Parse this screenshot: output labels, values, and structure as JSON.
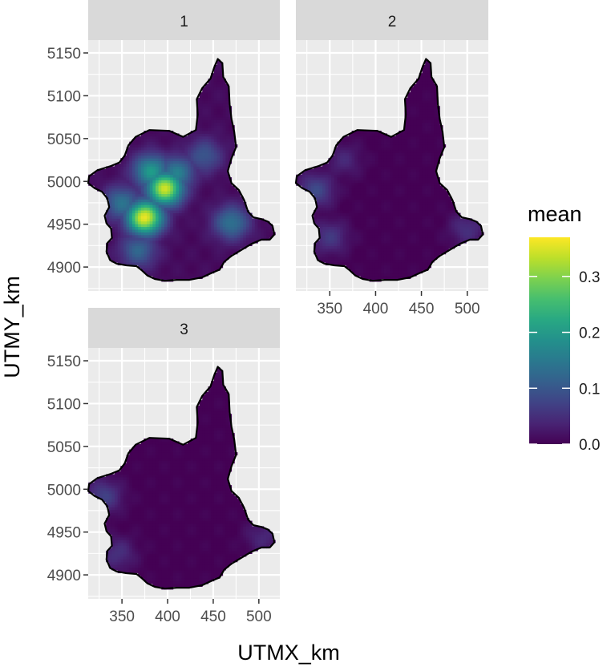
{
  "chart_data": {
    "type": "heatmap",
    "facet_strip_labels": [
      "1",
      "2",
      "3"
    ],
    "xlabel": "UTMX_km",
    "ylabel": "UTMY_km",
    "xlim": [
      313,
      523
    ],
    "ylim": [
      4872,
      5165
    ],
    "x_ticks": [
      350,
      400,
      450,
      500
    ],
    "y_ticks": [
      4900,
      4950,
      5000,
      5050,
      5100,
      5150
    ],
    "x_tick_labels": [
      "350",
      "400",
      "450",
      "500"
    ],
    "y_tick_labels": [
      "4900",
      "4950",
      "5000",
      "5050",
      "5100",
      "5150"
    ],
    "region_outline_utm": [
      [
        455,
        5143
      ],
      [
        460,
        5138
      ],
      [
        461,
        5122
      ],
      [
        467,
        5111
      ],
      [
        468,
        5090
      ],
      [
        470,
        5073
      ],
      [
        473,
        5058
      ],
      [
        475,
        5040
      ],
      [
        470,
        5027
      ],
      [
        466,
        5012
      ],
      [
        470,
        4998
      ],
      [
        478,
        4990
      ],
      [
        484,
        4978
      ],
      [
        488,
        4965
      ],
      [
        494,
        4958
      ],
      [
        503,
        4956
      ],
      [
        510,
        4953
      ],
      [
        515,
        4948
      ],
      [
        517,
        4938
      ],
      [
        512,
        4932
      ],
      [
        503,
        4932
      ],
      [
        492,
        4927
      ],
      [
        481,
        4920
      ],
      [
        470,
        4913
      ],
      [
        462,
        4906
      ],
      [
        457,
        4897
      ],
      [
        448,
        4893
      ],
      [
        438,
        4888
      ],
      [
        424,
        4885
      ],
      [
        410,
        4885
      ],
      [
        397,
        4884
      ],
      [
        386,
        4886
      ],
      [
        378,
        4890
      ],
      [
        372,
        4896
      ],
      [
        366,
        4901
      ],
      [
        355,
        4902
      ],
      [
        344,
        4904
      ],
      [
        337,
        4908
      ],
      [
        333,
        4918
      ],
      [
        334,
        4928
      ],
      [
        339,
        4934
      ],
      [
        338,
        4945
      ],
      [
        333,
        4951
      ],
      [
        331,
        4960
      ],
      [
        336,
        4970
      ],
      [
        334,
        4980
      ],
      [
        328,
        4988
      ],
      [
        320,
        4992
      ],
      [
        313,
        4998
      ],
      [
        314,
        5006
      ],
      [
        323,
        5013
      ],
      [
        338,
        5018
      ],
      [
        347,
        5022
      ],
      [
        353,
        5030
      ],
      [
        357,
        5042
      ],
      [
        365,
        5052
      ],
      [
        380,
        5060
      ],
      [
        402,
        5059
      ],
      [
        417,
        5052
      ],
      [
        431,
        5060
      ],
      [
        433,
        5078
      ],
      [
        432,
        5096
      ],
      [
        438,
        5109
      ],
      [
        447,
        5120
      ],
      [
        451,
        5133
      ]
    ],
    "series": [
      {
        "name": "1",
        "mean_range": [
          0.01,
          0.37
        ],
        "hotspots": [
          {
            "x": 375,
            "y": 4958,
            "mean": 0.36
          },
          {
            "x": 397,
            "y": 4992,
            "mean": 0.34
          },
          {
            "x": 382,
            "y": 5012,
            "mean": 0.2
          },
          {
            "x": 410,
            "y": 5010,
            "mean": 0.16
          },
          {
            "x": 350,
            "y": 4975,
            "mean": 0.14
          },
          {
            "x": 470,
            "y": 4952,
            "mean": 0.14
          },
          {
            "x": 368,
            "y": 4920,
            "mean": 0.12
          },
          {
            "x": 440,
            "y": 5030,
            "mean": 0.1
          }
        ]
      },
      {
        "name": "2",
        "mean_range": [
          0.0,
          0.09
        ],
        "hotspots": [
          {
            "x": 335,
            "y": 4990,
            "mean": 0.08
          },
          {
            "x": 350,
            "y": 4935,
            "mean": 0.06
          },
          {
            "x": 500,
            "y": 4945,
            "mean": 0.05
          },
          {
            "x": 365,
            "y": 5025,
            "mean": 0.04
          }
        ]
      },
      {
        "name": "3",
        "mean_range": [
          0.0,
          0.08
        ],
        "hotspots": [
          {
            "x": 330,
            "y": 4992,
            "mean": 0.07
          },
          {
            "x": 345,
            "y": 4925,
            "mean": 0.05
          },
          {
            "x": 505,
            "y": 4945,
            "mean": 0.04
          }
        ]
      }
    ],
    "legend": {
      "title": "mean",
      "placement": "right",
      "range": [
        0.0,
        0.37
      ],
      "breaks": [
        0.0,
        0.1,
        0.2,
        0.3
      ],
      "labels": [
        "0.0",
        "0.1",
        "0.2",
        "0.3"
      ],
      "colormap": "viridis"
    }
  },
  "colors": {
    "panel_background": "#ebebeb",
    "grid_line": "#ffffff",
    "strip_background": "#d9d9d9",
    "region_outline": "#000000",
    "tick_mark": "#333333"
  }
}
